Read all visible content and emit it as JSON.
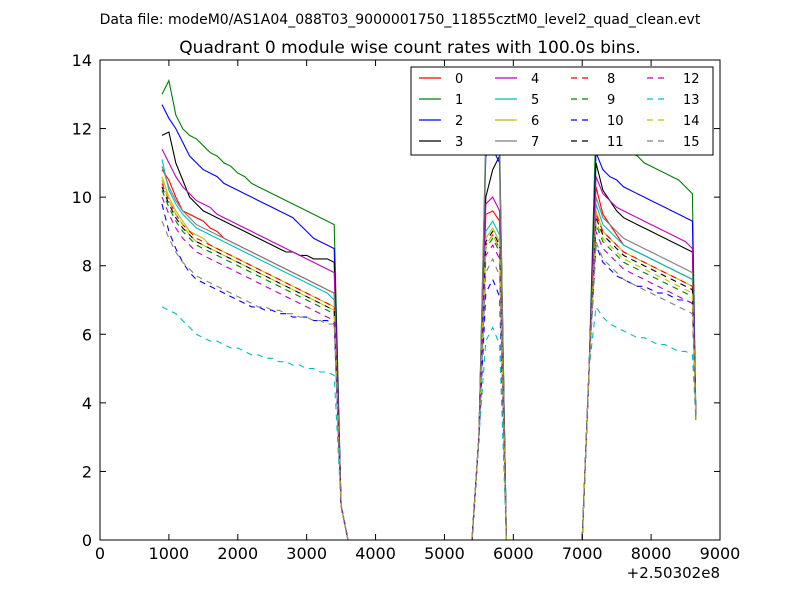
{
  "chart_data": {
    "type": "line",
    "suptitle": "Data file: modeM0/AS1A04_088T03_9000001750_11855cztM0_level2_quad_clean.evt",
    "title": "Quadrant 0 module wise count rates with 100.0s bins.",
    "xlabel": "",
    "ylabel": "",
    "x_offset_label": "+2.50302e8",
    "xlim": [
      0,
      9000
    ],
    "ylim": [
      0,
      14
    ],
    "x_ticks": [
      0,
      1000,
      2000,
      3000,
      4000,
      5000,
      6000,
      7000,
      8000,
      9000
    ],
    "y_ticks": [
      0,
      2,
      4,
      6,
      8,
      10,
      12,
      14
    ],
    "x_tick_labels": [
      "0",
      "1000",
      "2000",
      "3000",
      "4000",
      "5000",
      "6000",
      "7000",
      "8000",
      "9000"
    ],
    "y_tick_labels": [
      "0",
      "2",
      "4",
      "6",
      "8",
      "10",
      "12",
      "14"
    ],
    "grid": false,
    "legend_position": "top-right",
    "segments": [
      {
        "start": 900,
        "n": 26,
        "drop_points": [
          [
            3500,
            1.0
          ],
          [
            3600,
            0
          ]
        ]
      },
      {
        "start": 5400,
        "n": 1,
        "rise_points": [
          [
            5500,
            3.0
          ]
        ],
        "peak_x": [
          5600,
          5700,
          5800
        ],
        "drop_points": [
          [
            5900,
            0
          ]
        ]
      },
      {
        "start": 7000,
        "n": 1,
        "rise_points": [
          [
            7100,
            5.0
          ]
        ],
        "x_from": 7200,
        "n2": 15,
        "end_drop": [
          [
            8650,
            3.5
          ]
        ]
      }
    ],
    "series": [
      {
        "name": "0",
        "color": "#ff0000",
        "dash": "solid",
        "level1": [
          10.8,
          10.5,
          10.0,
          9.6,
          9.5,
          9.4,
          9.3,
          9.1,
          9.0,
          8.8,
          8.7,
          8.6,
          8.5,
          8.4,
          8.3,
          8.2,
          8.1,
          8.0,
          7.9,
          7.8,
          7.7,
          7.6,
          7.5,
          7.4,
          7.3,
          7.2
        ],
        "peak": [
          9.5,
          9.6,
          9.3
        ],
        "level2": [
          10.3,
          9.5,
          9.2,
          8.9,
          8.6,
          8.5,
          8.4,
          8.3,
          8.2,
          8.1,
          8.0,
          7.9,
          7.8,
          7.7,
          7.6
        ]
      },
      {
        "name": "1",
        "color": "#008000",
        "dash": "solid",
        "level1": [
          13.0,
          13.4,
          12.4,
          12.0,
          11.8,
          11.7,
          11.5,
          11.3,
          11.2,
          11.0,
          10.9,
          10.7,
          10.6,
          10.4,
          10.3,
          10.2,
          10.1,
          10.0,
          9.9,
          9.8,
          9.7,
          9.6,
          9.5,
          9.4,
          9.3,
          9.2
        ],
        "peak": [
          11.8,
          12.0,
          11.6
        ],
        "level2": [
          12.2,
          11.8,
          11.7,
          11.5,
          11.4,
          11.3,
          11.2,
          11.0,
          10.9,
          10.8,
          10.7,
          10.6,
          10.5,
          10.3,
          10.1
        ]
      },
      {
        "name": "2",
        "color": "#0000ff",
        "dash": "solid",
        "level1": [
          12.7,
          12.3,
          12.0,
          11.6,
          11.2,
          11.0,
          10.8,
          10.7,
          10.6,
          10.4,
          10.3,
          10.2,
          10.1,
          10.0,
          9.9,
          9.8,
          9.7,
          9.6,
          9.5,
          9.4,
          9.2,
          9.0,
          8.8,
          8.7,
          8.6,
          8.5
        ],
        "peak": [
          11.2,
          11.4,
          11.0
        ],
        "level2": [
          11.3,
          10.8,
          10.6,
          10.5,
          10.3,
          10.2,
          10.1,
          10.0,
          9.9,
          9.8,
          9.7,
          9.6,
          9.5,
          9.4,
          9.3
        ]
      },
      {
        "name": "3",
        "color": "#000000",
        "dash": "solid",
        "level1": [
          11.8,
          11.9,
          11.0,
          10.5,
          10.0,
          9.8,
          9.6,
          9.5,
          9.4,
          9.3,
          9.2,
          9.1,
          9.0,
          8.9,
          8.8,
          8.7,
          8.6,
          8.5,
          8.4,
          8.4,
          8.3,
          8.3,
          8.2,
          8.2,
          8.2,
          8.1
        ],
        "peak": [
          10.0,
          10.8,
          11.2
        ],
        "level2": [
          11.0,
          10.2,
          9.9,
          9.6,
          9.4,
          9.3,
          9.2,
          9.1,
          9.0,
          8.9,
          8.8,
          8.7,
          8.6,
          8.5,
          8.4
        ]
      },
      {
        "name": "4",
        "color": "#bf00bf",
        "dash": "solid",
        "level1": [
          11.4,
          11.0,
          10.6,
          10.3,
          10.1,
          9.9,
          9.8,
          9.7,
          9.5,
          9.4,
          9.3,
          9.2,
          9.1,
          9.0,
          8.9,
          8.8,
          8.7,
          8.6,
          8.5,
          8.4,
          8.3,
          8.2,
          8.1,
          8.0,
          7.9,
          7.8
        ],
        "peak": [
          9.8,
          10.0,
          9.6
        ],
        "level2": [
          10.6,
          10.1,
          9.9,
          9.7,
          9.6,
          9.5,
          9.4,
          9.3,
          9.2,
          9.1,
          9.0,
          8.9,
          8.8,
          8.7,
          8.5
        ]
      },
      {
        "name": "5",
        "color": "#00bfbf",
        "dash": "solid",
        "level1": [
          11.1,
          10.2,
          9.8,
          9.5,
          9.3,
          9.1,
          9.0,
          8.9,
          8.8,
          8.7,
          8.6,
          8.5,
          8.4,
          8.3,
          8.2,
          8.1,
          8.0,
          7.9,
          7.8,
          7.7,
          7.6,
          7.5,
          7.4,
          7.3,
          7.2,
          7.0
        ],
        "peak": [
          9.0,
          9.3,
          8.9
        ],
        "level2": [
          9.8,
          9.2,
          9.0,
          8.8,
          8.6,
          8.5,
          8.4,
          8.3,
          8.2,
          8.1,
          8.0,
          7.9,
          7.8,
          7.7,
          7.6
        ]
      },
      {
        "name": "6",
        "color": "#bfbf00",
        "dash": "solid",
        "level1": [
          10.6,
          10.0,
          9.6,
          9.3,
          9.0,
          8.9,
          8.8,
          8.6,
          8.5,
          8.4,
          8.3,
          8.2,
          8.1,
          8.0,
          7.9,
          7.8,
          7.7,
          7.6,
          7.5,
          7.4,
          7.3,
          7.2,
          7.1,
          7.0,
          6.9,
          6.8
        ],
        "peak": [
          8.8,
          9.1,
          8.7
        ],
        "level2": [
          9.6,
          9.0,
          8.8,
          8.6,
          8.4,
          8.3,
          8.2,
          8.1,
          8.0,
          7.9,
          7.8,
          7.7,
          7.6,
          7.5,
          7.4
        ]
      },
      {
        "name": "7",
        "color": "#7f7f7f",
        "dash": "solid",
        "level1": [
          10.9,
          10.3,
          9.9,
          9.6,
          9.4,
          9.2,
          9.1,
          9.0,
          8.9,
          8.8,
          8.7,
          8.6,
          8.5,
          8.4,
          8.3,
          8.2,
          8.1,
          8.0,
          7.9,
          7.8,
          7.7,
          7.6,
          7.5,
          7.4,
          7.3,
          7.2
        ],
        "peak": [
          11.6,
          12.2,
          11.4
        ],
        "level2": [
          10.0,
          9.4,
          9.2,
          9.0,
          8.8,
          8.7,
          8.6,
          8.5,
          8.4,
          8.3,
          8.2,
          8.1,
          8.0,
          7.9,
          7.8
        ]
      },
      {
        "name": "8",
        "color": "#ff0000",
        "dash": "dashed",
        "level1": [
          10.4,
          9.9,
          9.5,
          9.2,
          9.0,
          8.8,
          8.7,
          8.6,
          8.5,
          8.4,
          8.3,
          8.2,
          8.1,
          8.0,
          7.9,
          7.8,
          7.7,
          7.6,
          7.5,
          7.4,
          7.3,
          7.2,
          7.1,
          7.0,
          6.9,
          6.8
        ],
        "peak": [
          8.6,
          8.9,
          8.5
        ],
        "level2": [
          9.5,
          9.0,
          8.8,
          8.6,
          8.4,
          8.3,
          8.2,
          8.1,
          8.0,
          7.9,
          7.8,
          7.7,
          7.6,
          7.5,
          7.4
        ]
      },
      {
        "name": "9",
        "color": "#008000",
        "dash": "dashed",
        "level1": [
          10.2,
          9.7,
          9.3,
          9.0,
          8.8,
          8.6,
          8.5,
          8.4,
          8.3,
          8.2,
          8.1,
          8.0,
          7.9,
          7.8,
          7.7,
          7.6,
          7.5,
          7.4,
          7.3,
          7.2,
          7.1,
          7.0,
          6.9,
          6.8,
          6.7,
          6.6
        ],
        "peak": [
          8.5,
          8.8,
          8.4
        ],
        "level2": [
          9.2,
          8.7,
          8.5,
          8.3,
          8.1,
          8.0,
          7.9,
          7.8,
          7.7,
          7.6,
          7.5,
          7.4,
          7.3,
          7.2,
          7.1
        ]
      },
      {
        "name": "10",
        "color": "#0000ff",
        "dash": "dashed",
        "level1": [
          9.8,
          9.0,
          8.5,
          8.1,
          7.8,
          7.6,
          7.5,
          7.4,
          7.3,
          7.2,
          7.1,
          7.0,
          6.9,
          6.8,
          6.8,
          6.7,
          6.7,
          6.6,
          6.6,
          6.5,
          6.5,
          6.5,
          6.4,
          6.4,
          6.4,
          6.3
        ],
        "peak": [
          7.2,
          7.6,
          7.1
        ],
        "level2": [
          8.6,
          8.1,
          7.9,
          7.7,
          7.6,
          7.5,
          7.4,
          7.4,
          7.3,
          7.2,
          7.2,
          7.1,
          7.0,
          7.0,
          6.9
        ]
      },
      {
        "name": "11",
        "color": "#000000",
        "dash": "dashed",
        "level1": [
          10.3,
          9.8,
          9.4,
          9.1,
          8.9,
          8.7,
          8.6,
          8.5,
          8.4,
          8.3,
          8.2,
          8.1,
          8.0,
          7.9,
          7.8,
          7.7,
          7.6,
          7.5,
          7.4,
          7.3,
          7.2,
          7.1,
          7.0,
          6.9,
          6.8,
          6.7
        ],
        "peak": [
          8.7,
          9.0,
          8.6
        ],
        "level2": [
          9.4,
          8.9,
          8.7,
          8.5,
          8.3,
          8.2,
          8.1,
          8.0,
          7.9,
          7.8,
          7.7,
          7.6,
          7.5,
          7.4,
          7.3
        ]
      },
      {
        "name": "12",
        "color": "#bf00bf",
        "dash": "dashed",
        "level1": [
          10.0,
          9.5,
          9.1,
          8.8,
          8.6,
          8.4,
          8.3,
          8.2,
          8.1,
          8.0,
          7.9,
          7.8,
          7.7,
          7.6,
          7.5,
          7.4,
          7.3,
          7.2,
          7.1,
          7.0,
          6.9,
          6.8,
          6.7,
          6.6,
          6.5,
          6.4
        ],
        "peak": [
          8.3,
          8.6,
          8.2
        ],
        "level2": [
          9.0,
          8.5,
          8.3,
          8.1,
          7.9,
          7.8,
          7.7,
          7.6,
          7.5,
          7.4,
          7.3,
          7.2,
          7.1,
          7.0,
          6.9
        ]
      },
      {
        "name": "13",
        "color": "#00bfbf",
        "dash": "dashed",
        "level1": [
          6.8,
          6.7,
          6.6,
          6.4,
          6.2,
          6.0,
          5.9,
          5.8,
          5.8,
          5.7,
          5.6,
          5.6,
          5.5,
          5.4,
          5.4,
          5.3,
          5.3,
          5.2,
          5.2,
          5.1,
          5.1,
          5.0,
          5.0,
          4.9,
          4.9,
          4.8
        ],
        "peak": [
          5.8,
          6.2,
          5.7
        ],
        "level2": [
          6.8,
          6.5,
          6.3,
          6.2,
          6.1,
          6.0,
          5.9,
          5.9,
          5.8,
          5.7,
          5.7,
          5.6,
          5.5,
          5.5,
          5.4
        ]
      },
      {
        "name": "14",
        "color": "#bfbf00",
        "dash": "dashed",
        "level1": [
          10.5,
          9.9,
          9.5,
          9.2,
          8.9,
          8.7,
          8.6,
          8.5,
          8.4,
          8.3,
          8.2,
          8.1,
          8.0,
          7.9,
          7.8,
          7.7,
          7.6,
          7.5,
          7.4,
          7.3,
          7.2,
          7.1,
          7.0,
          6.9,
          6.8,
          6.7
        ],
        "peak": [
          8.6,
          8.9,
          8.5
        ],
        "level2": [
          9.3,
          8.8,
          8.6,
          8.4,
          8.2,
          8.1,
          8.0,
          7.9,
          7.8,
          7.7,
          7.6,
          7.5,
          7.4,
          7.3,
          7.2
        ]
      },
      {
        "name": "15",
        "color": "#7f7f7f",
        "dash": "dashed",
        "level1": [
          9.3,
          8.8,
          8.4,
          8.1,
          7.9,
          7.7,
          7.6,
          7.5,
          7.4,
          7.3,
          7.2,
          7.1,
          7.0,
          6.9,
          6.8,
          6.8,
          6.7,
          6.7,
          6.6,
          6.6,
          6.5,
          6.5,
          6.4,
          6.4,
          6.3,
          6.3
        ],
        "peak": [
          7.8,
          8.2,
          7.7
        ],
        "level2": [
          8.7,
          8.2,
          8.0,
          7.8,
          7.6,
          7.5,
          7.4,
          7.3,
          7.2,
          7.1,
          7.0,
          6.9,
          6.8,
          6.7,
          6.6
        ]
      }
    ]
  }
}
